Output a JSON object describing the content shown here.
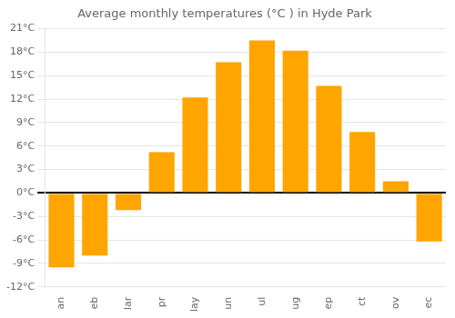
{
  "chart_data": {
    "type": "bar",
    "title": "Average monthly temperatures (°C ) in Hyde Park",
    "categories": [
      "an",
      "eb",
      "lar",
      "pr",
      "lay",
      "un",
      "ul",
      "ug",
      "ep",
      "ct",
      "ov",
      "ec"
    ],
    "values": [
      -9.5,
      -8.0,
      -2.2,
      5.2,
      12.2,
      16.7,
      19.5,
      18.2,
      13.7,
      7.8,
      1.5,
      -6.2
    ],
    "color": "#FFA500",
    "ylim": [
      -12,
      21
    ],
    "yticks": [
      {
        "value": -12,
        "label": "-12°C"
      },
      {
        "value": -9,
        "label": "-9°C"
      },
      {
        "value": -6,
        "label": "-6°C"
      },
      {
        "value": -3,
        "label": "-3°C"
      },
      {
        "value": 0,
        "label": "0°C"
      },
      {
        "value": 3,
        "label": "3°C"
      },
      {
        "value": 6,
        "label": "6°C"
      },
      {
        "value": 9,
        "label": "9°C"
      },
      {
        "value": 12,
        "label": "12°C"
      },
      {
        "value": 15,
        "label": "15°C"
      },
      {
        "value": 18,
        "label": "18°C"
      },
      {
        "value": 21,
        "label": "21°C"
      }
    ],
    "grid": true
  }
}
